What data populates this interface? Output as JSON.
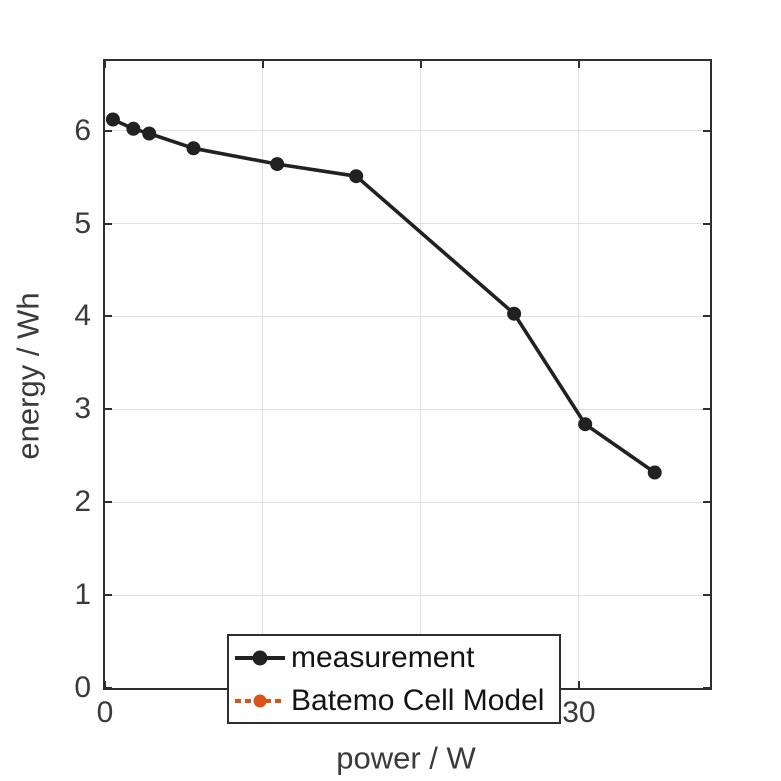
{
  "axes": {
    "xlabel": "power / W",
    "ylabel": "energy / Wh"
  },
  "legend": {
    "position": "lower-left",
    "entries": [
      {
        "label": "measurement",
        "color": "#212121",
        "line_style": "solid",
        "marker": "filled-circle"
      },
      {
        "label": "Batemo Cell Model",
        "color": "#D95319",
        "line_style": "dotted",
        "marker": "filled-circle"
      }
    ]
  },
  "colors": {
    "series_measurement": "#212121",
    "series_batemo": "#D95319",
    "grid": "#e0e0e0",
    "axis_box": "#2e2e2e",
    "tick_text": "#3a3a3a",
    "background": "#ffffff"
  },
  "chart_data": {
    "type": "line",
    "title": "",
    "xlabel": "power / W",
    "ylabel": "energy / Wh",
    "xlim": [
      0,
      38.3
    ],
    "ylim": [
      0,
      6.75
    ],
    "xticks": [
      0,
      10,
      20,
      30
    ],
    "yticks": [
      0,
      1,
      2,
      3,
      4,
      5,
      6
    ],
    "grid": true,
    "legend_position": "lower-left",
    "series": [
      {
        "name": "measurement",
        "style": "solid-line-with-filled-circle-markers",
        "color": "#212121",
        "points": [
          [
            0.5,
            6.12
          ],
          [
            1.8,
            6.02
          ],
          [
            2.8,
            5.97
          ],
          [
            5.6,
            5.81
          ],
          [
            10.9,
            5.64
          ],
          [
            15.9,
            5.51
          ],
          [
            25.9,
            4.03
          ],
          [
            30.4,
            2.84
          ],
          [
            34.8,
            2.32
          ]
        ]
      },
      {
        "name": "Batemo Cell Model",
        "style": "dotted-line-with-filled-circle-markers",
        "color": "#D95319",
        "points": [],
        "note": "legend entry only; no curve visible in plot area"
      }
    ]
  }
}
